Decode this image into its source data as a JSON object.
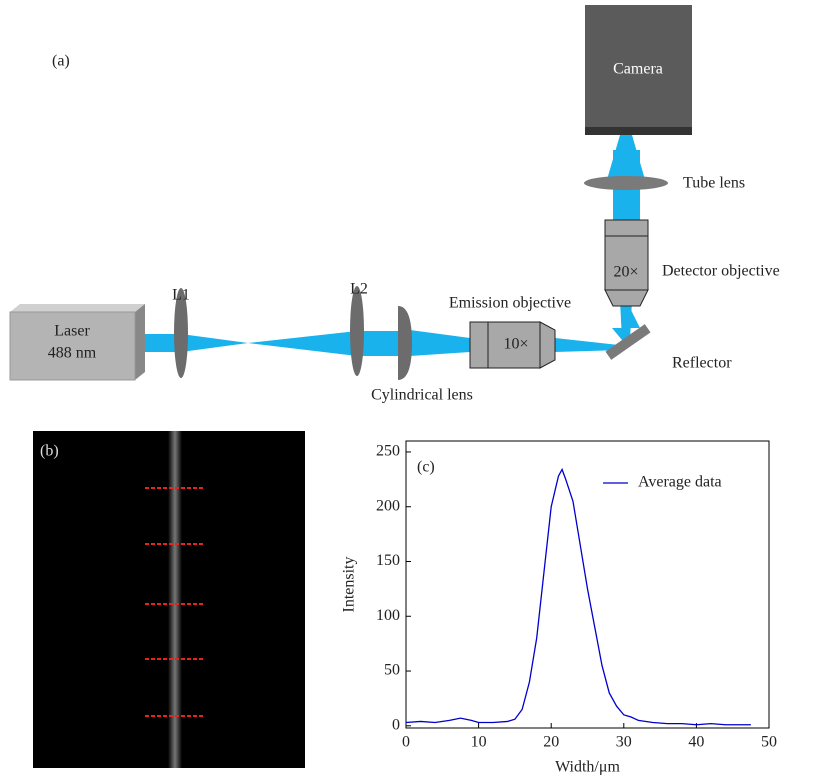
{
  "diagram": {
    "panel_label": "(a)",
    "laser": [
      "Laser",
      "488 nm"
    ],
    "lens1": "L1",
    "lens2": "L2",
    "cylindrical_lens": "Cylindrical lens",
    "emission_objective": "Emission objective",
    "emission_magnification": "10×",
    "detector_objective": "Detector objective",
    "detector_magnification": "20×",
    "tube_lens": "Tube lens",
    "reflector": "Reflector",
    "camera": "Camera"
  },
  "image": {
    "panel_label": "(b)"
  },
  "chart_data": {
    "type": "line",
    "panel_label": "(c)",
    "x_label": "Width/μm",
    "y_label": "Intensity",
    "x": [
      0,
      2,
      4,
      6,
      7.5,
      9,
      10,
      12,
      14,
      15,
      16,
      17,
      18,
      19,
      20,
      21,
      21.5,
      22,
      23,
      24,
      25,
      26,
      27,
      28,
      29,
      30,
      31,
      32,
      34,
      36,
      38,
      40,
      42,
      44,
      46,
      47.5
    ],
    "series": [
      {
        "name": "Average data",
        "color": "#0000cc",
        "values": [
          3,
          4,
          3,
          5,
          7,
          5,
          3,
          3,
          4,
          6,
          15,
          40,
          80,
          140,
          200,
          228,
          234,
          225,
          205,
          165,
          125,
          90,
          55,
          30,
          18,
          10,
          8,
          5,
          3,
          2,
          2,
          1,
          2,
          1,
          1,
          1
        ]
      }
    ],
    "xlim": [
      0,
      50
    ],
    "xticks": [
      0,
      10,
      20,
      30,
      40,
      50
    ],
    "ylim": [
      -2,
      260
    ],
    "yticks": [
      0,
      50,
      100,
      150,
      200,
      250
    ],
    "legend": "upper right"
  }
}
